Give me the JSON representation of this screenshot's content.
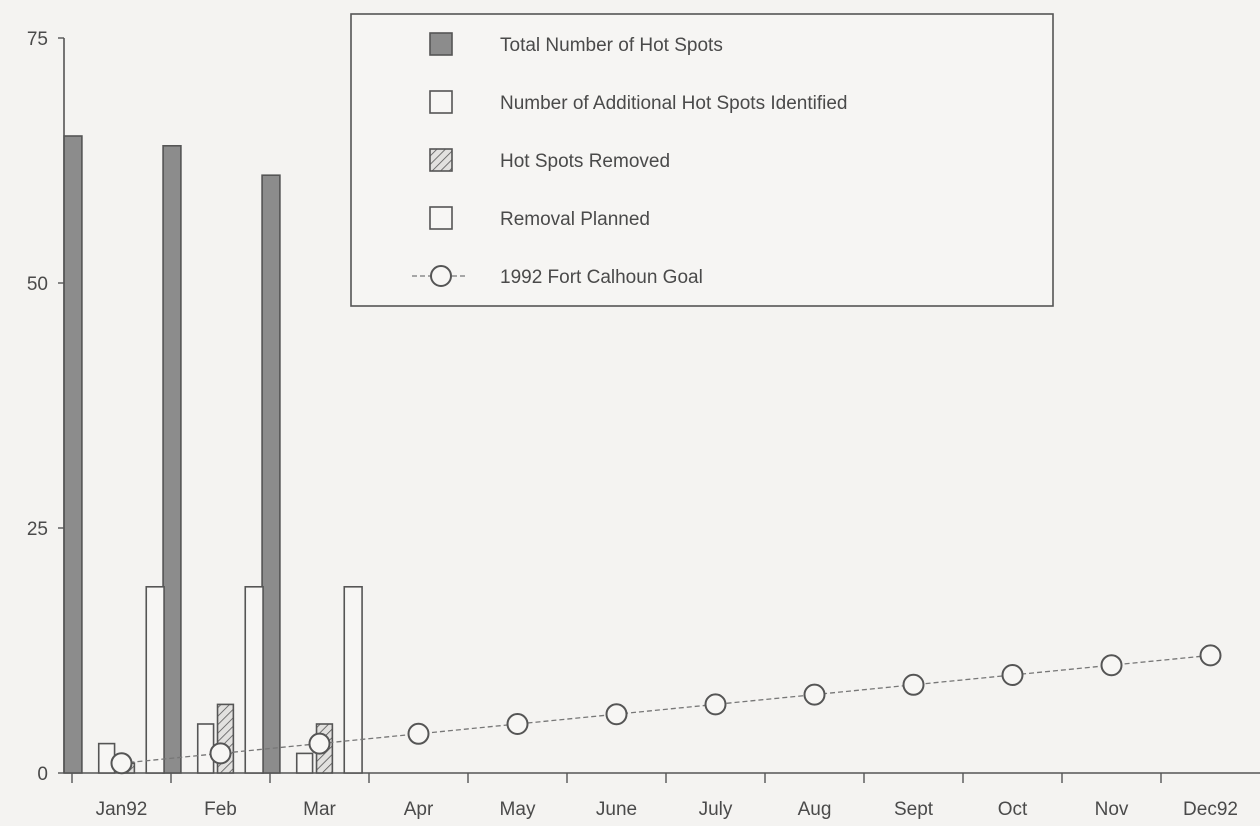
{
  "chart_data": {
    "type": "bar",
    "title": "",
    "xlabel": "",
    "ylabel": "",
    "ylim": [
      0,
      75
    ],
    "yticks": [
      0,
      25,
      50,
      75
    ],
    "categories": [
      "Jan92",
      "Feb",
      "Mar",
      "Apr",
      "May",
      "June",
      "July",
      "Aug",
      "Sept",
      "Oct",
      "Nov",
      "Dec92"
    ],
    "series": [
      {
        "name": "Total Number of Hot Spots",
        "kind": "bar",
        "style": "dark",
        "values": [
          65,
          64,
          61,
          null,
          null,
          null,
          null,
          null,
          null,
          null,
          null,
          null
        ]
      },
      {
        "name": "Number of Additional Hot Spots Identified",
        "kind": "bar",
        "style": "open",
        "values": [
          3,
          5,
          2,
          null,
          null,
          null,
          null,
          null,
          null,
          null,
          null,
          null
        ]
      },
      {
        "name": "Hot Spots Removed",
        "kind": "bar",
        "style": "hatched",
        "values": [
          1,
          7,
          5,
          null,
          null,
          null,
          null,
          null,
          null,
          null,
          null,
          null
        ]
      },
      {
        "name": "Removal Planned",
        "kind": "bar",
        "style": "open",
        "values": [
          19,
          19,
          19,
          null,
          null,
          null,
          null,
          null,
          null,
          null,
          null,
          null
        ]
      },
      {
        "name": "1992 Fort Calhoun Goal",
        "kind": "line",
        "style": "circle-marker",
        "values": [
          1,
          2,
          3,
          4,
          5,
          6,
          7,
          8,
          9,
          10,
          11,
          12
        ]
      }
    ],
    "legend": "top-center",
    "grid": false
  },
  "colors": {
    "background": "#f4f3f1",
    "dark_bar": "#8c8c8c",
    "outline": "#555555",
    "line": "#777777"
  }
}
